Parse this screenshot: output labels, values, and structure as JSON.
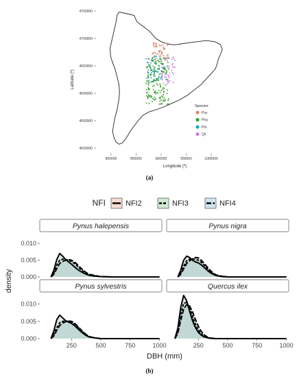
{
  "chart_data": [
    {
      "type": "scatter",
      "panel_label": "(a)",
      "xlabel": "Longitude (º)",
      "ylabel": "Latitude (º)",
      "x_ticks": [
        800000,
        850000,
        900000,
        950000,
        1000000
      ],
      "y_ticks": [
        4500000,
        4550000,
        4600000,
        4650000,
        4700000,
        4750000
      ],
      "xlim": [
        770000,
        1030000
      ],
      "ylim": [
        4490000,
        4760000
      ],
      "legend": {
        "title": "Species",
        "placement": "inside-bottom-right",
        "entries": [
          {
            "name": "Psy",
            "color": "#d98a6f"
          },
          {
            "name": "Pha",
            "color": "#3a9e2f"
          },
          {
            "name": "Pni",
            "color": "#2aa3b8"
          },
          {
            "name": "Qil",
            "color": "#c77fe0"
          }
        ]
      },
      "region_outline": [
        [
          816000,
          4748000
        ],
        [
          832000,
          4745000
        ],
        [
          846000,
          4742000
        ],
        [
          852000,
          4730000
        ],
        [
          864000,
          4722000
        ],
        [
          878000,
          4712000
        ],
        [
          889000,
          4700000
        ],
        [
          900000,
          4694000
        ],
        [
          912000,
          4690000
        ],
        [
          926000,
          4688000
        ],
        [
          940000,
          4690000
        ],
        [
          955000,
          4692000
        ],
        [
          972000,
          4694000
        ],
        [
          990000,
          4696000
        ],
        [
          1007000,
          4694000
        ],
        [
          1018000,
          4689000
        ],
        [
          1022000,
          4680000
        ],
        [
          1018000,
          4670000
        ],
        [
          1014000,
          4662000
        ],
        [
          1012000,
          4654000
        ],
        [
          1008000,
          4644000
        ],
        [
          1000000,
          4636000
        ],
        [
          990000,
          4626000
        ],
        [
          980000,
          4616000
        ],
        [
          966000,
          4606000
        ],
        [
          952000,
          4596000
        ],
        [
          937000,
          4588000
        ],
        [
          920000,
          4581000
        ],
        [
          905000,
          4575000
        ],
        [
          890000,
          4570000
        ],
        [
          876000,
          4566000
        ],
        [
          864000,
          4560000
        ],
        [
          856000,
          4552000
        ],
        [
          850000,
          4545000
        ],
        [
          844000,
          4538000
        ],
        [
          838000,
          4530000
        ],
        [
          833000,
          4522000
        ],
        [
          828000,
          4515000
        ],
        [
          822000,
          4509000
        ],
        [
          816000,
          4507000
        ],
        [
          810000,
          4511000
        ],
        [
          806000,
          4519000
        ],
        [
          803000,
          4530000
        ],
        [
          805000,
          4542000
        ],
        [
          808000,
          4556000
        ],
        [
          812000,
          4570000
        ],
        [
          815000,
          4585000
        ],
        [
          817000,
          4600000
        ],
        [
          816000,
          4615000
        ],
        [
          812000,
          4630000
        ],
        [
          808000,
          4644000
        ],
        [
          803000,
          4656000
        ],
        [
          799000,
          4668000
        ],
        [
          798000,
          4682000
        ],
        [
          802000,
          4698000
        ],
        [
          806000,
          4714000
        ],
        [
          810000,
          4730000
        ],
        [
          812000,
          4742000
        ],
        [
          816000,
          4748000
        ]
      ],
      "point_clusters": [
        {
          "species": "Psy",
          "n": 60,
          "x_range": [
            882000,
            915000
          ],
          "y_range": [
            4660000,
            4692000
          ]
        },
        {
          "species": "Pni",
          "n": 60,
          "x_range": [
            872000,
            905000
          ],
          "y_range": [
            4620000,
            4668000
          ]
        },
        {
          "species": "Qil",
          "n": 50,
          "x_range": [
            900000,
            928000
          ],
          "y_range": [
            4618000,
            4666000
          ]
        },
        {
          "species": "Pha",
          "n": 160,
          "x_range": [
            870000,
            915000
          ],
          "y_range": [
            4580000,
            4665000
          ]
        }
      ]
    },
    {
      "type": "area",
      "panel_label": "(b)",
      "xlabel": "DBH (mm)",
      "ylabel": "density",
      "x_ticks": [
        250,
        500,
        750,
        1000
      ],
      "y_ticks": [
        "0.000",
        "0.005",
        "0.010"
      ],
      "x_tick_labels": [
        "250",
        "500",
        "750",
        "1000"
      ],
      "xlim": [
        -20,
        1020
      ],
      "ylim": [
        0,
        0.0135
      ],
      "legend": {
        "title": "NFI",
        "placement": "top",
        "entries": [
          {
            "name": "NFI2",
            "line": "solid",
            "fill": "#f6dcd4"
          },
          {
            "name": "NFI3",
            "line": "dashed",
            "fill": "#cfe9d2"
          },
          {
            "name": "NFI4",
            "line": "longdash",
            "fill": "#d0e5ef"
          }
        ]
      },
      "facets": [
        {
          "title": "Pynus halepensis",
          "series": [
            {
              "name": "NFI2",
              "x": [
                75,
                100,
                125,
                150,
                175,
                200,
                225,
                250,
                275,
                300,
                325,
                350,
                375,
                400,
                450,
                500,
                600,
                700,
                800,
                900,
                1000
              ],
              "y": [
                0,
                0.002,
                0.0052,
                0.007,
                0.0062,
                0.0052,
                0.0045,
                0.0038,
                0.003,
                0.0023,
                0.0017,
                0.0012,
                0.0008,
                0.0005,
                0.0002,
                0.0001,
                0,
                0,
                0,
                0,
                0
              ]
            },
            {
              "name": "NFI3",
              "x": [
                75,
                100,
                125,
                150,
                175,
                200,
                225,
                250,
                275,
                300,
                325,
                350,
                375,
                400,
                450,
                500,
                600,
                700,
                800,
                900,
                1000
              ],
              "y": [
                0,
                0.0012,
                0.0035,
                0.005,
                0.0053,
                0.0052,
                0.005,
                0.0046,
                0.004,
                0.0032,
                0.0024,
                0.0017,
                0.0011,
                0.0007,
                0.0003,
                0.0001,
                0,
                0,
                0,
                0,
                0
              ]
            },
            {
              "name": "NFI4",
              "x": [
                75,
                100,
                125,
                150,
                175,
                200,
                225,
                250,
                275,
                300,
                325,
                350,
                375,
                400,
                450,
                500,
                600,
                700,
                800,
                900,
                1000
              ],
              "y": [
                0,
                0.0008,
                0.0025,
                0.004,
                0.0046,
                0.005,
                0.0052,
                0.005,
                0.0045,
                0.0037,
                0.0028,
                0.002,
                0.0013,
                0.0008,
                0.0004,
                0.0001,
                0,
                0,
                0,
                0,
                0
              ]
            }
          ]
        },
        {
          "title": "Pynus nigra",
          "series": [
            {
              "name": "NFI2",
              "x": [
                75,
                100,
                125,
                150,
                175,
                200,
                225,
                250,
                275,
                300,
                325,
                350,
                375,
                400,
                450,
                500,
                600,
                700,
                800,
                900,
                1000
              ],
              "y": [
                0,
                0.002,
                0.005,
                0.0062,
                0.0058,
                0.005,
                0.0045,
                0.0042,
                0.0036,
                0.0028,
                0.002,
                0.0013,
                0.0008,
                0.0004,
                0.0001,
                0,
                0,
                0,
                0,
                0,
                0
              ]
            },
            {
              "name": "NFI3",
              "x": [
                75,
                100,
                125,
                150,
                175,
                200,
                225,
                250,
                275,
                300,
                325,
                350,
                375,
                400,
                450,
                500,
                600,
                700,
                800,
                900,
                1000
              ],
              "y": [
                0,
                0.0012,
                0.0032,
                0.0048,
                0.0053,
                0.0054,
                0.0053,
                0.005,
                0.0044,
                0.0035,
                0.0026,
                0.0017,
                0.001,
                0.0006,
                0.0002,
                0,
                0,
                0,
                0,
                0,
                0
              ]
            },
            {
              "name": "NFI4",
              "x": [
                75,
                100,
                125,
                150,
                175,
                200,
                225,
                250,
                275,
                300,
                325,
                350,
                375,
                400,
                450,
                500,
                600,
                700,
                800,
                900,
                1000
              ],
              "y": [
                0,
                0.0008,
                0.0024,
                0.004,
                0.0048,
                0.0054,
                0.0058,
                0.0057,
                0.005,
                0.004,
                0.003,
                0.002,
                0.0012,
                0.0006,
                0.0002,
                0,
                0,
                0,
                0,
                0,
                0
              ]
            }
          ]
        },
        {
          "title": "Pynus sylvestris",
          "series": [
            {
              "name": "NFI2",
              "x": [
                75,
                100,
                125,
                150,
                175,
                200,
                225,
                250,
                275,
                300,
                325,
                350,
                375,
                400,
                450,
                500,
                600,
                700,
                800,
                900,
                1000
              ],
              "y": [
                0,
                0.0022,
                0.0055,
                0.0068,
                0.006,
                0.0052,
                0.0048,
                0.0044,
                0.0038,
                0.003,
                0.0022,
                0.0015,
                0.0009,
                0.0005,
                0.0002,
                0,
                0,
                0,
                0,
                0,
                0
              ]
            },
            {
              "name": "NFI3",
              "x": [
                75,
                100,
                125,
                150,
                175,
                200,
                225,
                250,
                275,
                300,
                325,
                350,
                375,
                400,
                450,
                500,
                600,
                700,
                800,
                900,
                1000
              ],
              "y": [
                0,
                0.0012,
                0.0032,
                0.0046,
                0.005,
                0.005,
                0.005,
                0.0048,
                0.0043,
                0.0035,
                0.0026,
                0.0018,
                0.0011,
                0.0006,
                0.0002,
                0,
                0,
                0,
                0,
                0,
                0
              ]
            },
            {
              "name": "NFI4",
              "x": [
                75,
                100,
                125,
                150,
                175,
                200,
                225,
                250,
                275,
                300,
                325,
                350,
                375,
                400,
                450,
                500,
                600,
                700,
                800,
                900,
                1000
              ],
              "y": [
                0,
                0.0008,
                0.0024,
                0.0038,
                0.0045,
                0.0049,
                0.0051,
                0.005,
                0.0045,
                0.0037,
                0.0028,
                0.0019,
                0.0012,
                0.0006,
                0.0002,
                0,
                0,
                0,
                0,
                0,
                0
              ]
            }
          ]
        },
        {
          "title": "Quercus ilex",
          "series": [
            {
              "name": "NFI2",
              "x": [
                50,
                75,
                100,
                125,
                150,
                175,
                200,
                225,
                250,
                275,
                300,
                325,
                350,
                400,
                450,
                500,
                600,
                700,
                800,
                900,
                1000
              ],
              "y": [
                0,
                0.003,
                0.009,
                0.0125,
                0.011,
                0.008,
                0.0052,
                0.0032,
                0.0018,
                0.001,
                0.0005,
                0.0003,
                0.0001,
                0,
                0,
                0,
                0,
                0,
                0,
                0,
                0
              ]
            },
            {
              "name": "NFI3",
              "x": [
                50,
                75,
                100,
                125,
                150,
                175,
                200,
                225,
                250,
                275,
                300,
                325,
                350,
                400,
                450,
                500,
                600,
                700,
                800,
                900,
                1000
              ],
              "y": [
                0,
                0.0022,
                0.007,
                0.0102,
                0.0105,
                0.009,
                0.0065,
                0.0042,
                0.0025,
                0.0014,
                0.0007,
                0.0003,
                0.0001,
                0,
                0,
                0,
                0,
                0,
                0,
                0,
                0
              ]
            },
            {
              "name": "NFI4",
              "x": [
                50,
                75,
                100,
                125,
                150,
                175,
                200,
                225,
                250,
                275,
                300,
                325,
                350,
                400,
                450,
                500,
                600,
                700,
                800,
                900,
                1000
              ],
              "y": [
                0,
                0.0015,
                0.0052,
                0.0085,
                0.0098,
                0.0095,
                0.0078,
                0.0056,
                0.0036,
                0.0021,
                0.0011,
                0.0005,
                0.0002,
                0,
                0,
                0,
                0,
                0,
                0,
                0,
                0
              ]
            }
          ]
        }
      ]
    }
  ]
}
